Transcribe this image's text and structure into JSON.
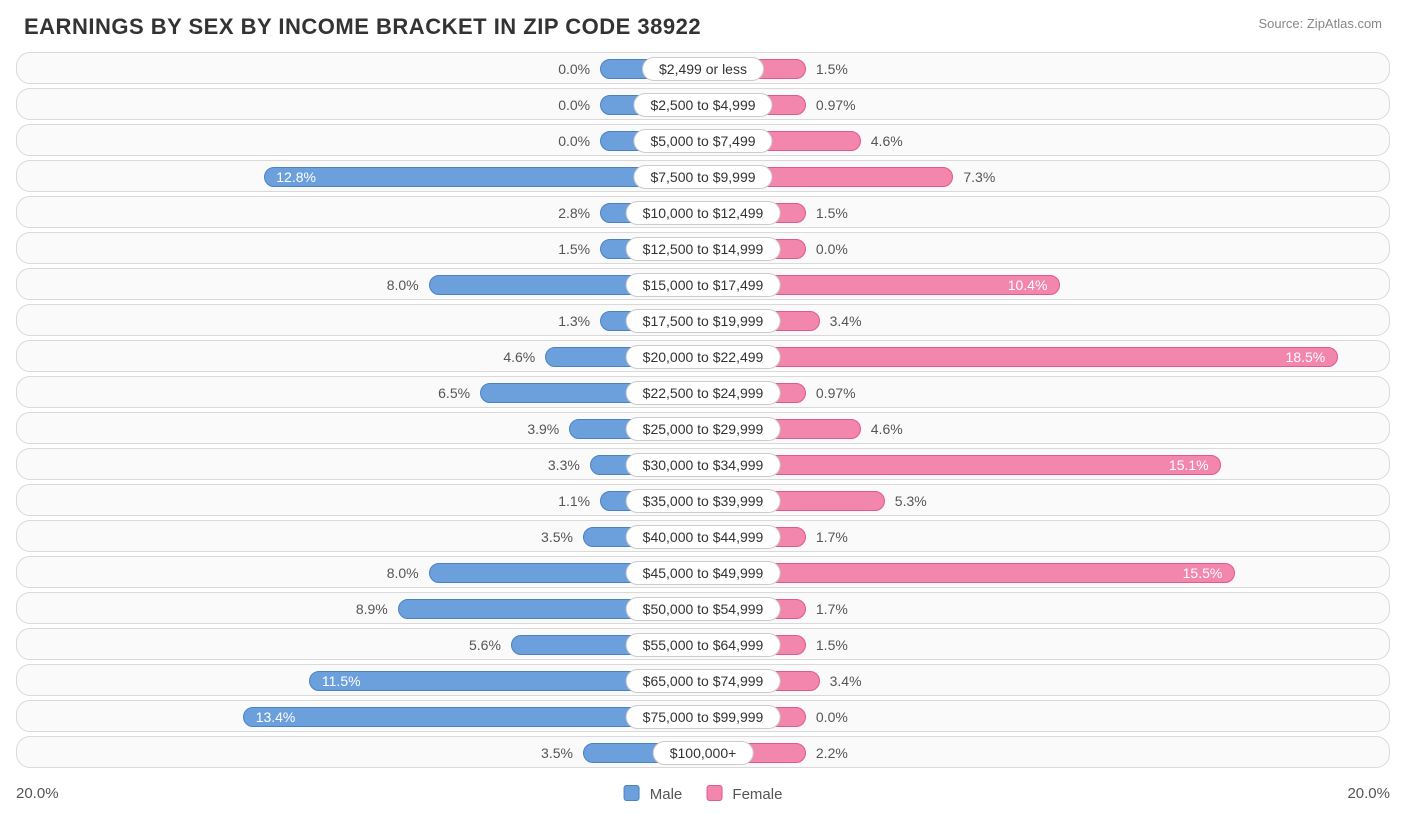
{
  "title": "EARNINGS BY SEX BY INCOME BRACKET IN ZIP CODE 38922",
  "source": "Source: ZipAtlas.com",
  "chart": {
    "type": "diverging-bar",
    "axis_max": 20.0,
    "axis_label_left": "20.0%",
    "axis_label_right": "20.0%",
    "row_bg": "#fafafa",
    "row_border": "#d9d9d9",
    "min_bar_pct": 3.0,
    "inbar_threshold": 10.0,
    "colors": {
      "male": {
        "fill": "#6ca0dc",
        "stroke": "#4a82c4"
      },
      "female": {
        "fill": "#f286ac",
        "stroke": "#e05a8b"
      }
    },
    "legend": {
      "male_label": "Male",
      "female_label": "Female"
    },
    "rows": [
      {
        "category": "$2,499 or less",
        "male": 0.0,
        "male_label": "0.0%",
        "female": 1.5,
        "female_label": "1.5%"
      },
      {
        "category": "$2,500 to $4,999",
        "male": 0.0,
        "male_label": "0.0%",
        "female": 0.97,
        "female_label": "0.97%"
      },
      {
        "category": "$5,000 to $7,499",
        "male": 0.0,
        "male_label": "0.0%",
        "female": 4.6,
        "female_label": "4.6%"
      },
      {
        "category": "$7,500 to $9,999",
        "male": 12.8,
        "male_label": "12.8%",
        "female": 7.3,
        "female_label": "7.3%"
      },
      {
        "category": "$10,000 to $12,499",
        "male": 2.8,
        "male_label": "2.8%",
        "female": 1.5,
        "female_label": "1.5%"
      },
      {
        "category": "$12,500 to $14,999",
        "male": 1.5,
        "male_label": "1.5%",
        "female": 0.0,
        "female_label": "0.0%"
      },
      {
        "category": "$15,000 to $17,499",
        "male": 8.0,
        "male_label": "8.0%",
        "female": 10.4,
        "female_label": "10.4%"
      },
      {
        "category": "$17,500 to $19,999",
        "male": 1.3,
        "male_label": "1.3%",
        "female": 3.4,
        "female_label": "3.4%"
      },
      {
        "category": "$20,000 to $22,499",
        "male": 4.6,
        "male_label": "4.6%",
        "female": 18.5,
        "female_label": "18.5%"
      },
      {
        "category": "$22,500 to $24,999",
        "male": 6.5,
        "male_label": "6.5%",
        "female": 0.97,
        "female_label": "0.97%"
      },
      {
        "category": "$25,000 to $29,999",
        "male": 3.9,
        "male_label": "3.9%",
        "female": 4.6,
        "female_label": "4.6%"
      },
      {
        "category": "$30,000 to $34,999",
        "male": 3.3,
        "male_label": "3.3%",
        "female": 15.1,
        "female_label": "15.1%"
      },
      {
        "category": "$35,000 to $39,999",
        "male": 1.1,
        "male_label": "1.1%",
        "female": 5.3,
        "female_label": "5.3%"
      },
      {
        "category": "$40,000 to $44,999",
        "male": 3.5,
        "male_label": "3.5%",
        "female": 1.7,
        "female_label": "1.7%"
      },
      {
        "category": "$45,000 to $49,999",
        "male": 8.0,
        "male_label": "8.0%",
        "female": 15.5,
        "female_label": "15.5%"
      },
      {
        "category": "$50,000 to $54,999",
        "male": 8.9,
        "male_label": "8.9%",
        "female": 1.7,
        "female_label": "1.7%"
      },
      {
        "category": "$55,000 to $64,999",
        "male": 5.6,
        "male_label": "5.6%",
        "female": 1.5,
        "female_label": "1.5%"
      },
      {
        "category": "$65,000 to $74,999",
        "male": 11.5,
        "male_label": "11.5%",
        "female": 3.4,
        "female_label": "3.4%"
      },
      {
        "category": "$75,000 to $99,999",
        "male": 13.4,
        "male_label": "13.4%",
        "female": 0.0,
        "female_label": "0.0%"
      },
      {
        "category": "$100,000+",
        "male": 3.5,
        "male_label": "3.5%",
        "female": 2.2,
        "female_label": "2.2%"
      }
    ]
  }
}
